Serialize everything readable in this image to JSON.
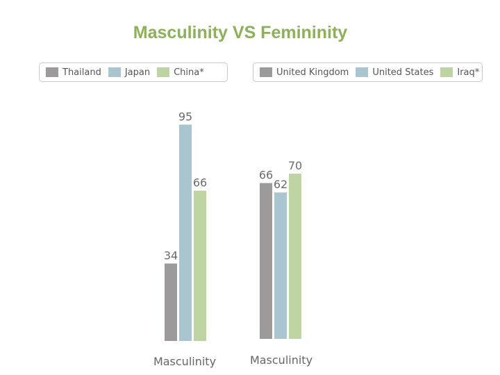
{
  "title": "Masculinity VS Femininity",
  "chart_data": [
    {
      "type": "bar",
      "categories": [
        "Masculinity"
      ],
      "series": [
        {
          "name": "Thailand",
          "values": [
            34
          ],
          "color": "#9c9a9b"
        },
        {
          "name": "Japan",
          "values": [
            95
          ],
          "color": "#a9c5cf"
        },
        {
          "name": "China*",
          "values": [
            66
          ],
          "color": "#bed4a2"
        }
      ],
      "ylim": [
        0,
        100
      ],
      "legend": "top",
      "grid": false
    },
    {
      "type": "bar",
      "categories": [
        "Masculinity"
      ],
      "series": [
        {
          "name": "United Kingdom",
          "values": [
            66
          ],
          "color": "#9c9a9b"
        },
        {
          "name": "United States",
          "values": [
            62
          ],
          "color": "#a9c5cf"
        },
        {
          "name": "Iraq*",
          "values": [
            70
          ],
          "color": "#bed4a2"
        }
      ],
      "ylim": [
        0,
        100
      ],
      "legend": "top",
      "grid": false
    }
  ]
}
